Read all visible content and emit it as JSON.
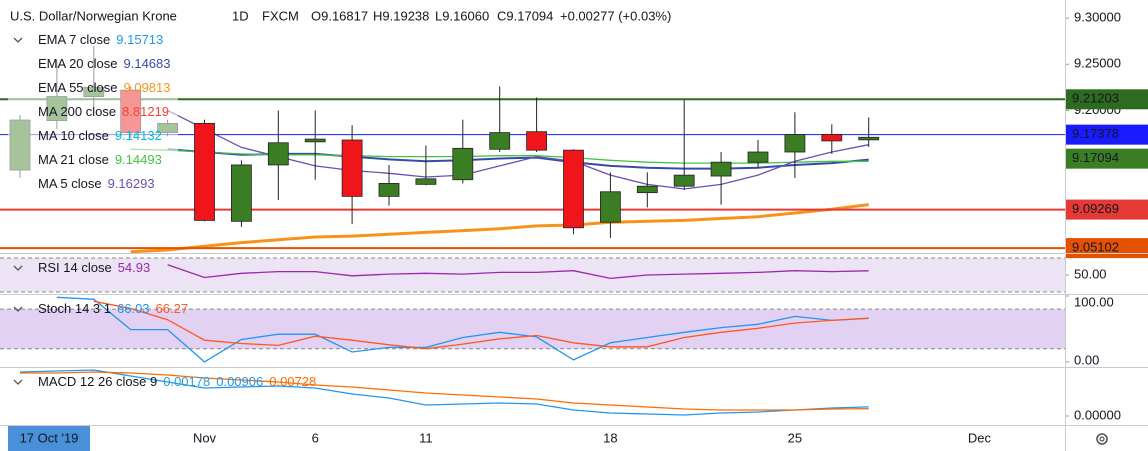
{
  "chart_data": [
    {
      "type": "candlestick",
      "title": "U.S. Dollar/Norwegian Krone",
      "interval": "1D",
      "exchange": "FXCM",
      "ohlc": [
        "O9.16817",
        "H9.19238",
        "L9.16060",
        "C9.17094"
      ],
      "change": "+0.00277 (+0.03%)",
      "categories": [
        null,
        null,
        null,
        null,
        null,
        "Nov",
        null,
        null,
        "6",
        null,
        null,
        "11",
        null,
        null,
        null,
        null,
        "18",
        null,
        null,
        null,
        null,
        "25",
        null,
        null
      ],
      "future_labels": [
        "Dec"
      ],
      "crosshair_label": "17 Oct '19",
      "open": [
        9.1355,
        9.189,
        9.215,
        9.222,
        9.176,
        9.186,
        9.08,
        9.141,
        9.166,
        9.168,
        9.107,
        9.12,
        9.125,
        9.158,
        9.177,
        9.157,
        9.079,
        9.111,
        9.118,
        9.129,
        9.144,
        9.155,
        9.174,
        9.16817
      ],
      "high": [
        9.195,
        9.255,
        9.27,
        9.226,
        9.19,
        9.19,
        9.146,
        9.2,
        9.2,
        9.184,
        9.141,
        9.162,
        9.19,
        9.226,
        9.214,
        9.158,
        9.133,
        9.133,
        9.211,
        9.155,
        9.168,
        9.198,
        9.185,
        9.19238
      ],
      "low": [
        9.127,
        9.18,
        9.205,
        9.17,
        9.172,
        9.08,
        9.074,
        9.103,
        9.125,
        9.077,
        9.097,
        9.119,
        9.121,
        9.155,
        9.155,
        9.066,
        9.062,
        9.095,
        9.114,
        9.098,
        9.138,
        9.127,
        9.153,
        9.1606
      ],
      "close": [
        9.1896,
        9.215,
        9.225,
        9.176,
        9.186,
        9.081,
        9.141,
        9.165,
        9.169,
        9.107,
        9.121,
        9.126,
        9.159,
        9.176,
        9.157,
        9.073,
        9.112,
        9.118,
        9.13,
        9.144,
        9.155,
        9.174,
        9.167,
        9.17094
      ],
      "up_color": "#3a7d22",
      "down_color": "#f0151a",
      "ylim": [
        9.0468,
        9.3195
      ],
      "yticks": [
        {
          "value": 9.2,
          "label": "9.20000"
        },
        {
          "value": 9.25,
          "label": "9.25000"
        },
        {
          "value": 9.3,
          "label": "9.30000"
        }
      ],
      "price_lines": [
        {
          "value": 9.21203,
          "color": "#2e6b1e"
        },
        {
          "value": 9.17378,
          "color": "#1a1aff"
        },
        {
          "value": 9.09269,
          "color": "#e53935"
        },
        {
          "value": 9.05102,
          "color": "#e65100"
        }
      ],
      "studies": [
        {
          "name": "EMA 7 close",
          "last": 9.15713,
          "color": "#2196f3"
        },
        {
          "name": "EMA 20 close",
          "last": 9.14683,
          "color": "#3949ab",
          "values": [
            null,
            null,
            null,
            null,
            9.158,
            9.155,
            9.152,
            9.153,
            9.153,
            9.15,
            9.147,
            9.145,
            9.146,
            9.148,
            9.149,
            9.144,
            9.14,
            9.138,
            9.137,
            9.137,
            9.138,
            9.141,
            9.143,
            9.1468
          ]
        },
        {
          "name": "EMA 55 close",
          "last": 9.09813,
          "color": "#f7931a",
          "values": [
            null,
            null,
            null,
            9.047,
            9.049,
            9.053,
            9.057,
            9.06,
            9.063,
            9.064,
            9.066,
            9.068,
            9.07,
            9.072,
            9.075,
            9.076,
            9.079,
            9.08,
            9.081,
            9.083,
            9.085,
            9.089,
            9.093,
            9.0981
          ]
        },
        {
          "name": "MA 200 close",
          "last": 8.81219,
          "color": "#f44336"
        },
        {
          "name": "MA 10 close",
          "last": 9.14132,
          "color": "#00bcd4"
        },
        {
          "name": "MA 21 close",
          "last": 9.14493,
          "color": "#43c443",
          "values": [
            null,
            null,
            null,
            9.158,
            9.157,
            9.155,
            9.153,
            9.152,
            9.152,
            9.151,
            9.15,
            9.15,
            9.15,
            9.151,
            9.151,
            9.149,
            9.146,
            9.144,
            9.143,
            9.143,
            9.143,
            9.144,
            9.145,
            9.1449
          ]
        },
        {
          "name": "MA 5 close",
          "last": 9.16293,
          "color": "#6a4fb8",
          "values": [
            null,
            null,
            null,
            null,
            9.2,
            9.18,
            9.16,
            9.15,
            9.14,
            9.135,
            9.132,
            9.128,
            9.13,
            9.14,
            9.15,
            9.145,
            9.13,
            9.12,
            9.115,
            9.12,
            9.13,
            9.145,
            9.155,
            9.1629
          ]
        }
      ]
    },
    {
      "type": "line",
      "title": "RSI 14 close",
      "series": [
        {
          "color": "#9c27b0",
          "last": 54.93,
          "values": [
            null,
            null,
            null,
            null,
            62,
            47,
            52,
            54,
            54,
            49,
            51,
            52,
            51,
            53,
            53,
            55,
            46,
            50,
            51,
            52,
            53,
            55,
            54,
            54.93
          ]
        }
      ],
      "bands": [
        30,
        70
      ],
      "band_color": "#e7dcf3",
      "ylim": [
        27.6,
        74.7
      ],
      "yticks": [
        {
          "value": 50,
          "label": "50.00"
        }
      ]
    },
    {
      "type": "line",
      "title": "Stoch 14 3 1",
      "series": [
        {
          "color": "#2196f3",
          "last": 66.03,
          "values": [
            null,
            98,
            95,
            49,
            49,
            0,
            34,
            42,
            42,
            15,
            22,
            22,
            37,
            45,
            38,
            3,
            29,
            37,
            45,
            52,
            57,
            69,
            63,
            66.03
          ]
        },
        {
          "color": "#ff5722",
          "last": 66.27,
          "values": [
            null,
            null,
            92,
            81,
            64,
            33,
            28,
            25,
            39,
            33,
            26,
            20,
            27,
            35,
            40,
            29,
            23,
            23,
            37,
            45,
            51,
            59,
            63,
            66.27
          ]
        }
      ],
      "bands": [
        20,
        80
      ],
      "band_color": "#dcc6f0",
      "ylim": [
        -7.7,
        101.5
      ],
      "yticks": [
        {
          "value": 0,
          "label": "0.00"
        },
        {
          "value": 100,
          "label": "100.00"
        }
      ]
    },
    {
      "type": "line",
      "title": "MACD 12 26 close 9",
      "histogram_last": 0.00178,
      "histogram_color": "#26a0da",
      "series": [
        {
          "color": "#2196f3",
          "last": 0.00906,
          "values": [
            0.044,
            0.045,
            0.046,
            0.04,
            0.034,
            0.028,
            0.029,
            0.03,
            0.028,
            0.022,
            0.018,
            0.011,
            0.012,
            0.013,
            0.012,
            0.006,
            0.003,
            0.002,
            0.001,
            0.003,
            0.004,
            0.006,
            0.008,
            0.00906
          ]
        },
        {
          "color": "#ff6d00",
          "last": 0.00728,
          "values": [
            0.043,
            0.043,
            0.044,
            0.043,
            0.041,
            0.038,
            0.036,
            0.034,
            0.031,
            0.029,
            0.026,
            0.023,
            0.021,
            0.019,
            0.017,
            0.013,
            0.011,
            0.009,
            0.007,
            0.006,
            0.006,
            0.006,
            0.007,
            0.00728
          ]
        }
      ],
      "ylim": [
        -0.009,
        0.048
      ],
      "yticks": [
        {
          "value": 0,
          "label": "0.00000"
        }
      ]
    }
  ]
}
